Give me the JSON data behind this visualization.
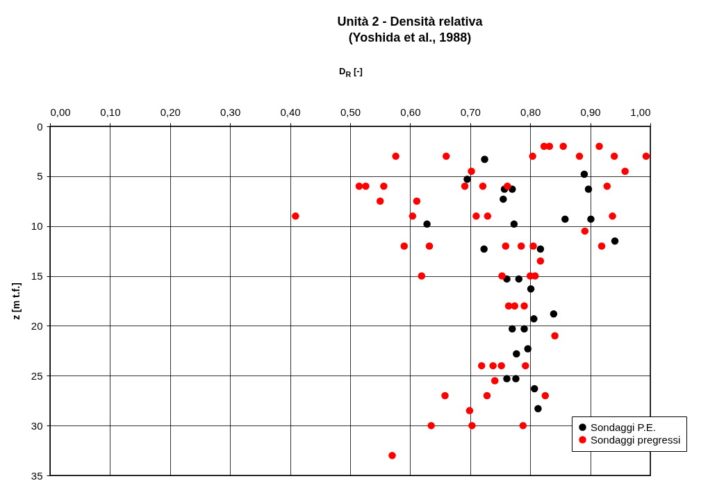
{
  "chart_data": {
    "type": "scatter",
    "title": [
      "Unità 2 - Densità relativa",
      "(Yoshida et al., 1988)"
    ],
    "xlabel": "D$_{R}$ [-]",
    "ylabel": "z [m t.f.]",
    "xlim": [
      0,
      1
    ],
    "xticks": [
      {
        "value": 0,
        "label": "0,00"
      },
      {
        "value": 0.1,
        "label": "0,10"
      },
      {
        "value": 0.2,
        "label": "0,20"
      },
      {
        "value": 0.3,
        "label": "0,30"
      },
      {
        "value": 0.4,
        "label": "0,40"
      },
      {
        "value": 0.5,
        "label": "0,50"
      },
      {
        "value": 0.6,
        "label": "0,60"
      },
      {
        "value": 0.7,
        "label": "0,70"
      },
      {
        "value": 0.8,
        "label": "0,80"
      },
      {
        "value": 0.9,
        "label": "0,90"
      },
      {
        "value": 1,
        "label": "1,00"
      }
    ],
    "ylim": [
      35,
      0
    ],
    "yticks": [
      0,
      5,
      10,
      15,
      20,
      25,
      30,
      35
    ],
    "grid": true,
    "legend": "bottom right",
    "marker": "circle",
    "series": [
      {
        "name": "Sondaggi P.E.",
        "color": "#000000",
        "x": [
          0.724,
          0.695,
          0.89,
          0.757,
          0.77,
          0.755,
          0.897,
          0.628,
          0.858,
          0.901,
          0.773,
          0.723,
          0.817,
          0.941,
          0.761,
          0.781,
          0.801,
          0.839,
          0.806,
          0.77,
          0.79,
          0.796,
          0.777,
          0.761,
          0.776,
          0.807,
          0.813
        ],
        "values": [
          3.3,
          5.3,
          4.8,
          6.3,
          6.3,
          7.3,
          6.3,
          9.8,
          9.3,
          9.3,
          9.8,
          12.3,
          12.3,
          11.5,
          15.3,
          15.3,
          16.3,
          18.8,
          19.3,
          20.3,
          20.3,
          22.3,
          22.8,
          25.3,
          25.3,
          26.3,
          28.3
        ]
      },
      {
        "name": "Sondaggi pregressi",
        "color": "#ff0000",
        "x": [
          0.823,
          0.832,
          0.855,
          0.915,
          0.576,
          0.66,
          0.804,
          0.882,
          0.94,
          0.993,
          0.702,
          0.958,
          0.515,
          0.526,
          0.556,
          0.691,
          0.721,
          0.762,
          0.928,
          0.55,
          0.611,
          0.409,
          0.604,
          0.71,
          0.729,
          0.937,
          0.891,
          0.59,
          0.632,
          0.759,
          0.785,
          0.805,
          0.919,
          0.817,
          0.619,
          0.753,
          0.8,
          0.808,
          0.764,
          0.774,
          0.79,
          0.841,
          0.719,
          0.738,
          0.752,
          0.792,
          0.741,
          0.658,
          0.728,
          0.825,
          0.699,
          0.635,
          0.703,
          0.788,
          0.57
        ],
        "values": [
          2.0,
          2.0,
          2.0,
          2.0,
          3.0,
          3.0,
          3.0,
          3.0,
          3.0,
          3.0,
          4.5,
          4.5,
          6.0,
          6.0,
          6.0,
          6.0,
          6.0,
          6.0,
          6.0,
          7.5,
          7.5,
          9.0,
          9.0,
          9.0,
          9.0,
          9.0,
          10.5,
          12.0,
          12.0,
          12.0,
          12.0,
          12.0,
          12.0,
          13.5,
          15.0,
          15.0,
          15.0,
          15.0,
          18.0,
          18.0,
          18.0,
          21.0,
          24.0,
          24.0,
          24.0,
          24.0,
          25.5,
          27.0,
          27.0,
          27.0,
          28.5,
          30.0,
          30.0,
          30.0,
          33.0
        ]
      }
    ]
  }
}
